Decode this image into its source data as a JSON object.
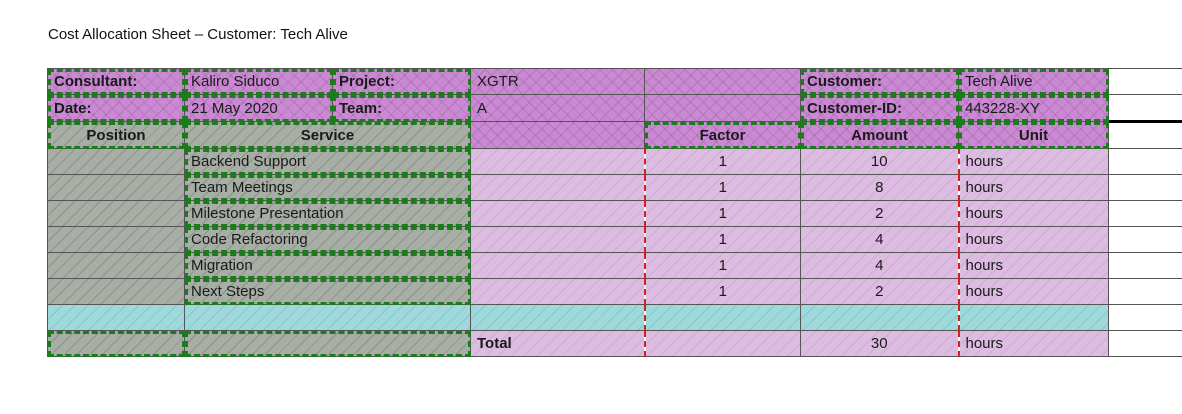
{
  "title": "Cost Allocation Sheet – Customer: Tech Alive",
  "meta": {
    "consultant_label": "Consultant:",
    "consultant_value": "Kaliro Siduco",
    "project_label": "Project:",
    "project_value": "XGTR",
    "customer_label": "Customer:",
    "customer_value": "Tech Alive",
    "date_label": "Date:",
    "date_value": "21 May 2020",
    "team_label": "Team:",
    "team_value": "A",
    "customer_id_label": "Customer-ID:",
    "customer_id_value": "443228-XY"
  },
  "columns": {
    "position": "Position",
    "service": "Service",
    "factor": "Factor",
    "amount": "Amount",
    "unit": "Unit"
  },
  "rows": [
    {
      "service": "Backend Support",
      "factor": "1",
      "amount": "10",
      "unit": "hours"
    },
    {
      "service": "Team Meetings",
      "factor": "1",
      "amount": "8",
      "unit": "hours"
    },
    {
      "service": "Milestone Presentation",
      "factor": "1",
      "amount": "2",
      "unit": "hours"
    },
    {
      "service": "Code Refactoring",
      "factor": "1",
      "amount": "4",
      "unit": "hours"
    },
    {
      "service": "Migration",
      "factor": "1",
      "amount": "4",
      "unit": "hours"
    },
    {
      "service": "Next Steps",
      "factor": "1",
      "amount": "2",
      "unit": "hours"
    }
  ],
  "total": {
    "label": "Total",
    "amount": "30",
    "unit": "hours"
  }
}
